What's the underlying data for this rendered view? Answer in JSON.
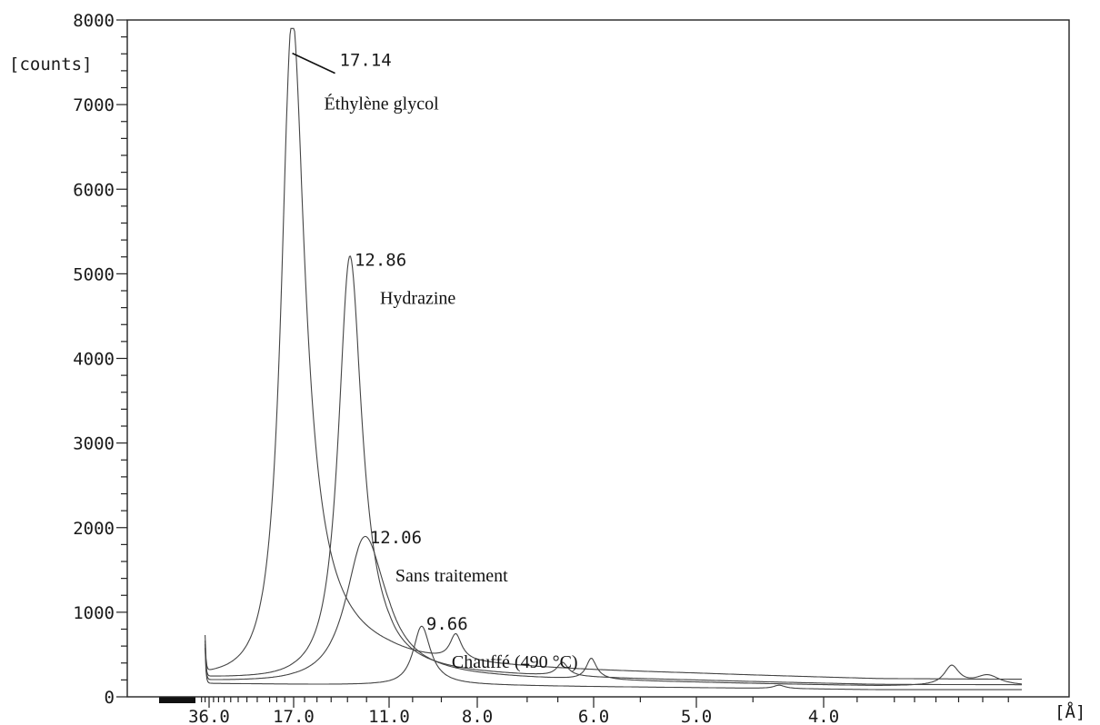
{
  "chart_data": {
    "type": "line",
    "title": "",
    "ylabel": "[counts]",
    "xlabel_unit": "[Å]",
    "ylim": [
      0,
      8000
    ],
    "yticks": [
      "0",
      "1000",
      "2000",
      "3000",
      "4000",
      "5000",
      "6000",
      "7000",
      "8000"
    ],
    "xticks": [
      {
        "label": "36.0",
        "d": 36.0
      },
      {
        "label": "17.0",
        "d": 17.0
      },
      {
        "label": "11.0",
        "d": 11.0
      },
      {
        "label": "8.0",
        "d": 8.0
      },
      {
        "label": "6.0",
        "d": 6.0
      },
      {
        "label": "5.0",
        "d": 5.0
      },
      {
        "label": "4.0",
        "d": 4.0
      }
    ],
    "x_axis_scale": "reciprocal d-spacing (2θ)",
    "series": [
      {
        "name": "Éthylène glycol",
        "peak_label": "17.14",
        "baseline_start": 230,
        "peaks": [
          {
            "d": 17.14,
            "height": 7800,
            "width": 1.5
          },
          {
            "d": 8.57,
            "height": 300,
            "width": 0.2
          }
        ]
      },
      {
        "name": "Hydrazine",
        "peak_label": "12.86",
        "baseline_start": 200,
        "peaks": [
          {
            "d": 12.86,
            "height": 5000,
            "width": 0.8
          },
          {
            "d": 6.43,
            "height": 160,
            "width": 0.1
          }
        ]
      },
      {
        "name": "Sans traitement",
        "peak_label": "12.06",
        "baseline_start": 160,
        "peaks": [
          {
            "d": 12.06,
            "height": 1720,
            "width": 1.2
          },
          {
            "d": 6.03,
            "height": 250,
            "width": 0.08
          },
          {
            "d": 3.33,
            "height": 230,
            "width": 0.04
          },
          {
            "d": 3.18,
            "height": 120,
            "width": 0.06
          }
        ]
      },
      {
        "name": "Chauffé (490 °C)",
        "peak_label": "9.66",
        "baseline_start": 120,
        "peaks": [
          {
            "d": 9.66,
            "height": 700,
            "width": 0.38
          },
          {
            "d": 4.3,
            "height": 40,
            "width": 0.05
          }
        ]
      }
    ]
  }
}
